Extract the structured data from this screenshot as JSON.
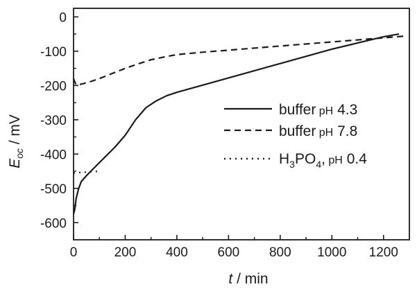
{
  "chart_data": {
    "type": "line",
    "title": "",
    "xlabel": {
      "italic": "t",
      "rest": " / min"
    },
    "ylabel": {
      "italic": "E",
      "sub": "oc",
      "rest": " / mV"
    },
    "xlim": [
      0,
      1300
    ],
    "ylim": [
      -650,
      25
    ],
    "xticks": [
      0,
      200,
      400,
      600,
      800,
      1000,
      1200
    ],
    "yticks": [
      0,
      -100,
      -200,
      -300,
      -400,
      -500,
      -600
    ],
    "grid": false,
    "legend_position": "right",
    "series": [
      {
        "name": "buffer pH 4.3",
        "style": "solid",
        "legend": {
          "text": "buffer",
          "small": " pH",
          "value": " 4.3"
        },
        "x": [
          0,
          5,
          10,
          20,
          30,
          50,
          80,
          120,
          160,
          200,
          240,
          280,
          320,
          360,
          400,
          600,
          800,
          1000,
          1200,
          1260
        ],
        "y": [
          -575,
          -560,
          -530,
          -500,
          -480,
          -463,
          -440,
          -410,
          -380,
          -345,
          -300,
          -265,
          -245,
          -230,
          -220,
          -178,
          -136,
          -94,
          -58,
          -50
        ]
      },
      {
        "name": "buffer pH 7.8",
        "style": "dashed",
        "legend": {
          "text": "buffer",
          "small": " pH",
          "value": " 7.8"
        },
        "x": [
          0,
          5,
          10,
          30,
          60,
          100,
          150,
          200,
          250,
          300,
          350,
          400,
          500,
          600,
          800,
          1000,
          1200,
          1280
        ],
        "y": [
          -180,
          -190,
          -198,
          -196,
          -190,
          -180,
          -165,
          -150,
          -137,
          -125,
          -117,
          -110,
          -103,
          -97,
          -85,
          -73,
          -61,
          -56
        ]
      },
      {
        "name": "H3PO4, pH 0.4",
        "style": "dotted",
        "legend": {
          "text": "H",
          "sub1": "3",
          "text2": "PO",
          "sub2": "4",
          "text3": ",",
          "small": " pH",
          "value": " 0.4"
        },
        "x": [
          0,
          20,
          40,
          60,
          80,
          100
        ],
        "y": [
          -455,
          -454,
          -453,
          -452,
          -451,
          -450
        ]
      }
    ]
  }
}
